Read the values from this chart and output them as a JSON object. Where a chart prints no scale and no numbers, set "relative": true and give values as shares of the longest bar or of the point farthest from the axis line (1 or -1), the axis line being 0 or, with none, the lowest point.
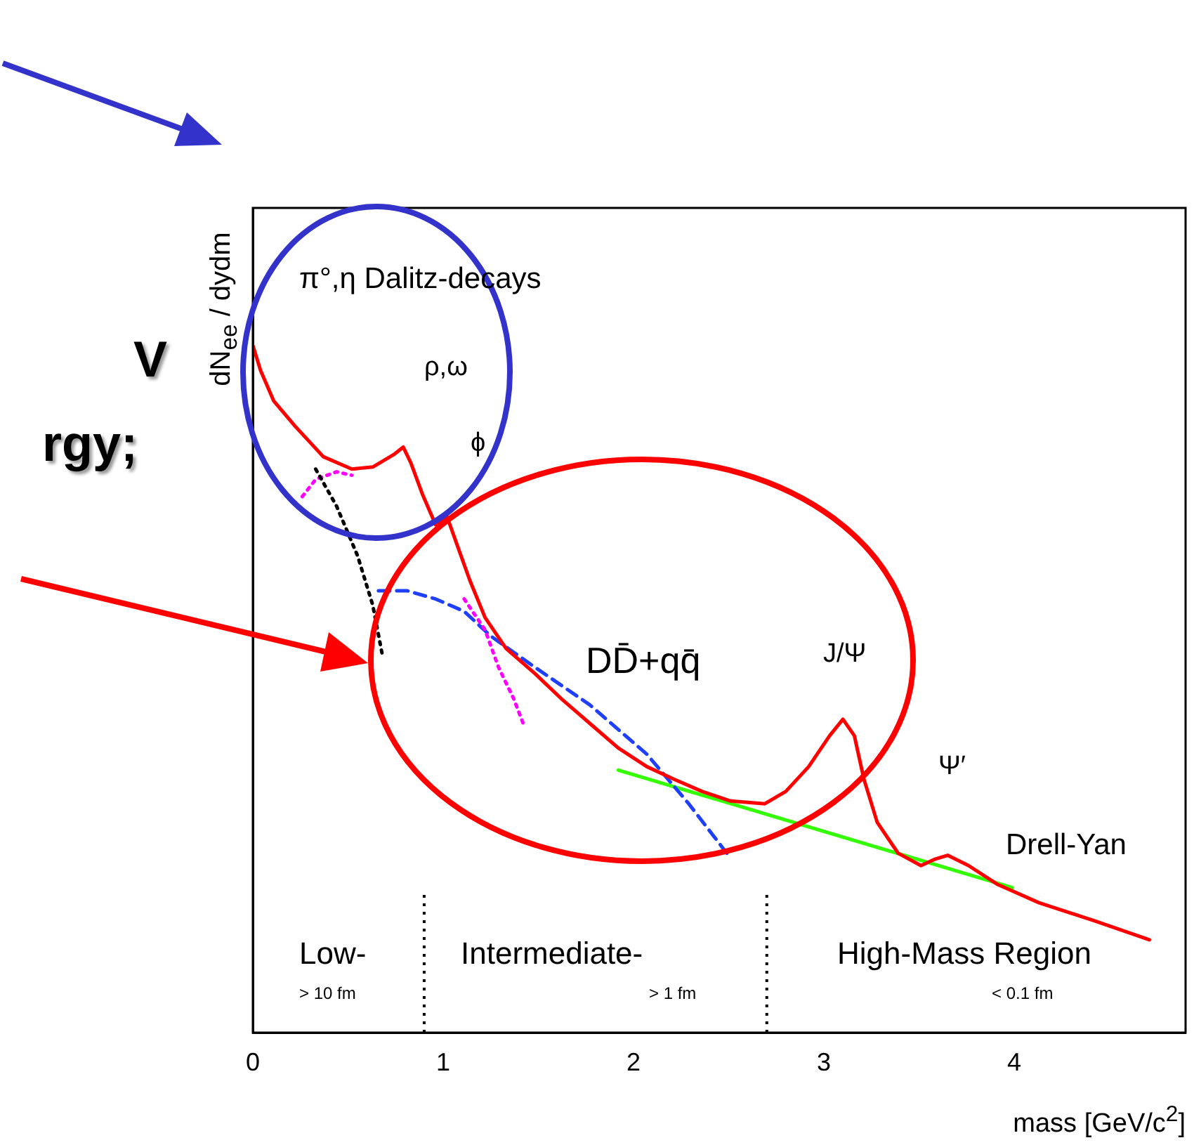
{
  "chart_data": {
    "type": "line",
    "relative": true,
    "xlabel": "mass [GeV/c$^{2}$]",
    "ylabel": "dN$_{ee}$ / dydm",
    "xlim": [
      0,
      4.9
    ],
    "xticks": [
      0,
      1,
      2,
      3,
      4
    ],
    "marker": "none",
    "series": [
      {
        "color": "#ff0000",
        "line_style": "solid",
        "x": [
          0,
          0.04,
          0.11,
          0.22,
          0.37,
          0.52,
          0.63,
          0.74,
          0.79,
          0.83,
          0.89,
          0.96,
          1.02,
          1.07,
          1.14,
          1.22,
          1.33,
          1.48,
          1.62,
          1.77,
          1.92,
          2.07,
          2.21,
          2.36,
          2.51,
          2.69,
          2.8,
          2.92,
          3.03,
          3.1,
          3.16,
          3.21,
          3.28,
          3.39,
          3.51,
          3.58,
          3.65,
          3.76,
          3.91,
          4.13,
          4.43,
          4.71
        ],
        "values": [
          1.0,
          0.964,
          0.919,
          0.883,
          0.838,
          0.82,
          0.823,
          0.841,
          0.852,
          0.829,
          0.784,
          0.739,
          0.751,
          0.712,
          0.658,
          0.604,
          0.559,
          0.523,
          0.486,
          0.45,
          0.414,
          0.387,
          0.369,
          0.351,
          0.337,
          0.333,
          0.351,
          0.387,
          0.432,
          0.456,
          0.432,
          0.369,
          0.306,
          0.261,
          0.243,
          0.252,
          0.258,
          0.243,
          0.216,
          0.189,
          0.162,
          0.135
        ]
      },
      {
        "color": "#000000",
        "line_style": "dotted",
        "x": [
          0.33,
          0.44,
          0.55,
          0.63,
          0.68
        ],
        "values": [
          0.82,
          0.766,
          0.694,
          0.622,
          0.55
        ]
      },
      {
        "color": "#ff00ff",
        "line_style": "dotted",
        "x": [
          0.26,
          0.33,
          0.44,
          0.52,
          0.81,
          1.11,
          1.22,
          1.29,
          1.37,
          1.42
        ],
        "values": [
          0.78,
          0.805,
          0.816,
          0.811,
          null,
          0.631,
          0.586,
          0.532,
          0.486,
          0.45
        ]
      },
      {
        "color": "#1f3fff",
        "line_style": "dashed",
        "x": [
          0.66,
          0.81,
          0.96,
          1.11,
          1.25,
          1.48,
          1.77,
          2.07,
          2.29,
          2.49
        ],
        "values": [
          0.643,
          0.643,
          0.631,
          0.613,
          0.577,
          0.532,
          0.477,
          0.405,
          0.333,
          0.261
        ]
      },
      {
        "color": "#33ff00",
        "line_style": "solid",
        "x": [
          1.92,
          3.99
        ],
        "values": [
          0.382,
          0.211
        ]
      }
    ],
    "ref_lines": [
      {
        "axis": "x",
        "value": 0.9,
        "color": "#000000",
        "line_style": "dotted"
      },
      {
        "axis": "x",
        "value": 2.7,
        "color": "#000000",
        "line_style": "dotted"
      }
    ],
    "annotations": [
      "π°,η Dalitz-decays",
      "ρ,ω",
      "ϕ",
      "DD̄+qq̄",
      "J/Ψ",
      "Ψ′",
      "Drell-Yan",
      "Low-",
      "> 10 fm",
      "Intermediate-",
      "> 1 fm",
      "High-Mass Region",
      "< 0.1 fm",
      "V",
      "rgy;"
    ]
  }
}
